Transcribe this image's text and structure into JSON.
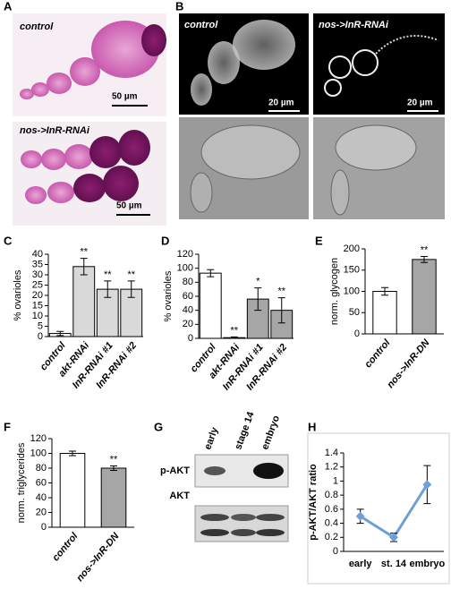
{
  "panel_labels": [
    "A",
    "B",
    "C",
    "D",
    "E",
    "F",
    "G",
    "H"
  ],
  "panel_a": {
    "top_label": "control",
    "top_scale": "50 µm",
    "bottom_label": "nos->InR-RNAi",
    "bottom_scale": "50 µm"
  },
  "panel_b": {
    "left_label": "control",
    "right_label": "nos->InR-RNAi",
    "left_scale": "20 µm",
    "right_scale": "20 µm"
  },
  "panel_g": {
    "lanes": [
      "early",
      "stage 14",
      "embryo"
    ],
    "rows": [
      "p-AKT",
      "AKT"
    ]
  },
  "chart_data": [
    {
      "type": "bar",
      "ylabel": "% ovarioles",
      "categories": [
        "control",
        "akt-RNAi",
        "InR-RNAi #1",
        "InR-RNAi #2"
      ],
      "values": [
        1.5,
        34,
        23,
        23
      ],
      "errors": [
        1,
        4,
        4,
        4
      ],
      "value_annotations": [
        null,
        "**",
        "**",
        "**"
      ],
      "colors": [
        "#ffffff",
        "#d9d9d9",
        "#d9d9d9",
        "#d9d9d9"
      ],
      "ylim": [
        0,
        40
      ],
      "yticks": [
        0,
        5,
        10,
        15,
        20,
        25,
        30,
        35,
        40
      ]
    },
    {
      "type": "bar",
      "ylabel": "% ovarioles",
      "categories": [
        "control",
        "akt-RNAi",
        "InR-RNAi #1",
        "InR-RNAi #2"
      ],
      "values": [
        93,
        1,
        56,
        40
      ],
      "errors": [
        5,
        1,
        16,
        18
      ],
      "value_annotations": [
        null,
        "**",
        "*",
        "**"
      ],
      "colors": [
        "#ffffff",
        "#a6a6a6",
        "#a6a6a6",
        "#a6a6a6"
      ],
      "ylim": [
        0,
        120
      ],
      "yticks": [
        0,
        20,
        40,
        60,
        80,
        100,
        120
      ]
    },
    {
      "type": "bar",
      "ylabel": "norm. glycogen",
      "categories": [
        "control",
        "nos->InR-DN"
      ],
      "values": [
        100,
        175
      ],
      "errors": [
        9,
        7
      ],
      "value_annotations": [
        null,
        "**"
      ],
      "colors": [
        "#ffffff",
        "#a6a6a6"
      ],
      "ylim": [
        0,
        200
      ],
      "yticks": [
        0,
        50,
        100,
        150,
        200
      ]
    },
    {
      "type": "bar",
      "ylabel": "norm. triglycerides",
      "categories": [
        "control",
        "nos->InR-DN"
      ],
      "values": [
        100,
        80
      ],
      "errors": [
        3,
        3
      ],
      "value_annotations": [
        null,
        "**"
      ],
      "colors": [
        "#ffffff",
        "#a6a6a6"
      ],
      "ylim": [
        0,
        120
      ],
      "yticks": [
        0,
        20,
        40,
        60,
        80,
        100,
        120
      ]
    },
    {
      "type": "line",
      "ylabel": "p-AKT/AKT ratio",
      "categories": [
        "early",
        "st. 14",
        "embryo"
      ],
      "values": [
        0.5,
        0.2,
        0.95
      ],
      "errors": [
        0.1,
        0.06,
        0.27
      ],
      "color": "#6f9fd8",
      "ylim": [
        0,
        1.4
      ],
      "yticks": [
        0,
        0.2,
        0.4,
        0.6,
        0.8,
        1,
        1.2,
        1.4
      ]
    }
  ]
}
